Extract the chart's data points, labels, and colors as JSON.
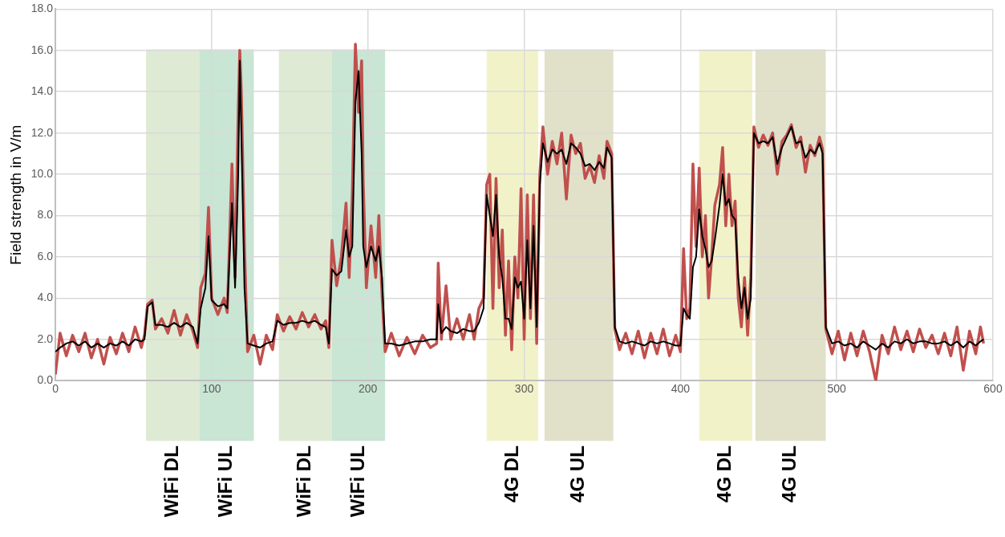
{
  "chart_data": {
    "type": "line",
    "ylabel": "Field strength in V/m",
    "x": [
      0,
      3,
      7,
      11,
      15,
      19,
      23,
      27,
      31,
      35,
      39,
      43,
      47,
      51,
      55,
      57,
      59,
      62,
      64,
      68,
      72,
      76,
      80,
      84,
      88,
      91,
      93,
      96,
      98,
      100,
      104,
      108,
      110,
      113,
      115,
      117,
      118,
      119,
      121,
      123,
      127,
      131,
      135,
      139,
      142,
      146,
      150,
      154,
      158,
      162,
      166,
      170,
      173,
      175,
      177,
      180,
      183,
      186,
      188,
      190,
      192,
      194,
      196,
      197,
      199,
      202,
      205,
      207,
      209,
      211,
      215,
      220,
      225,
      230,
      235,
      240,
      244,
      245,
      247,
      250,
      253,
      257,
      261,
      265,
      268,
      271,
      274,
      276,
      278,
      280,
      282,
      284,
      286,
      288,
      290,
      292,
      294,
      296,
      298,
      300,
      302,
      304,
      306,
      308,
      310,
      312,
      315,
      318,
      321,
      324,
      327,
      330,
      333,
      336,
      339,
      342,
      345,
      348,
      351,
      353,
      356,
      358,
      361,
      365,
      369,
      373,
      377,
      381,
      385,
      389,
      393,
      397,
      400,
      402,
      404,
      406,
      408,
      410,
      412,
      414,
      416,
      418,
      420,
      422,
      425,
      427,
      429,
      431,
      433,
      435,
      437,
      439,
      441,
      443,
      445,
      447,
      450,
      453,
      456,
      459,
      462,
      465,
      468,
      471,
      474,
      477,
      480,
      483,
      486,
      489,
      491,
      493,
      497,
      501,
      505,
      509,
      513,
      517,
      521,
      525,
      529,
      533,
      537,
      541,
      545,
      549,
      553,
      557,
      561,
      565,
      569,
      573,
      577,
      581,
      585,
      589,
      592,
      594
    ],
    "series": [
      {
        "color": "#c0504d",
        "values": [
          0.3,
          2.3,
          1.2,
          2.2,
          1.4,
          2.3,
          1.1,
          2.0,
          0.8,
          2.1,
          1.3,
          2.3,
          1.4,
          2.6,
          1.6,
          2.2,
          3.7,
          3.9,
          2.5,
          3.0,
          2.3,
          3.4,
          2.2,
          3.2,
          2.4,
          1.6,
          4.5,
          5.2,
          8.4,
          4.0,
          3.2,
          4.0,
          3.3,
          10.5,
          5.0,
          13.0,
          16.0,
          14.0,
          6.5,
          1.4,
          2.2,
          0.8,
          2.2,
          1.5,
          3.2,
          2.4,
          3.1,
          2.5,
          3.3,
          2.6,
          3.2,
          2.5,
          2.9,
          1.6,
          6.8,
          4.6,
          6.0,
          8.6,
          5.0,
          9.0,
          16.3,
          13.0,
          15.5,
          9.6,
          4.5,
          7.5,
          5.0,
          8.0,
          4.2,
          1.4,
          2.3,
          1.2,
          2.1,
          1.3,
          2.2,
          1.6,
          1.8,
          5.7,
          2.0,
          4.6,
          2.0,
          3.0,
          2.0,
          3.2,
          2.0,
          3.5,
          4.0,
          9.5,
          10.0,
          3.5,
          9.8,
          4.5,
          7.3,
          2.2,
          5.8,
          1.5,
          6.0,
          4.0,
          9.3,
          2.0,
          9.0,
          3.0,
          9.0,
          1.8,
          10.0,
          12.3,
          10.0,
          11.6,
          10.5,
          12.0,
          8.8,
          11.9,
          11.0,
          11.5,
          9.8,
          10.4,
          9.6,
          10.9,
          9.8,
          11.6,
          11.0,
          2.5,
          1.5,
          2.3,
          1.3,
          2.4,
          1.1,
          2.3,
          1.3,
          2.5,
          1.2,
          2.2,
          1.4,
          6.4,
          3.0,
          3.5,
          10.5,
          6.5,
          10.3,
          6.0,
          8.0,
          4.0,
          6.0,
          8.5,
          9.5,
          11.3,
          7.5,
          10.0,
          7.5,
          8.7,
          4.0,
          2.6,
          5.0,
          2.2,
          5.0,
          12.3,
          11.3,
          11.9,
          11.4,
          12.0,
          10.0,
          11.6,
          11.9,
          12.4,
          11.3,
          11.8,
          10.1,
          11.4,
          10.9,
          11.8,
          11.2,
          2.5,
          1.3,
          2.4,
          1.0,
          2.3,
          1.2,
          2.4,
          1.4,
          0.0,
          2.2,
          1.3,
          2.6,
          1.5,
          2.4,
          1.4,
          2.5,
          1.6,
          2.2,
          1.3,
          2.3,
          1.2,
          2.6,
          0.5,
          2.4,
          1.3,
          2.6,
          1.8
        ]
      },
      {
        "color": "#000000",
        "values": [
          1.4,
          1.6,
          1.8,
          1.9,
          1.7,
          1.9,
          1.6,
          1.8,
          1.6,
          1.8,
          1.7,
          1.9,
          1.7,
          2.0,
          1.9,
          2.0,
          3.6,
          3.8,
          2.7,
          2.7,
          2.6,
          2.8,
          2.6,
          2.8,
          2.6,
          1.8,
          3.5,
          4.5,
          7.0,
          3.9,
          3.6,
          3.7,
          3.5,
          8.6,
          4.5,
          10.0,
          15.5,
          12.0,
          4.5,
          1.8,
          1.7,
          1.6,
          1.8,
          1.9,
          2.9,
          2.7,
          2.8,
          2.8,
          2.9,
          2.8,
          2.9,
          2.7,
          2.6,
          1.8,
          5.4,
          5.1,
          5.3,
          7.3,
          6.0,
          6.5,
          13.5,
          15.0,
          11.0,
          6.5,
          5.5,
          6.5,
          5.8,
          6.5,
          5.0,
          1.8,
          1.8,
          1.7,
          1.8,
          1.9,
          1.9,
          2.0,
          2.0,
          3.7,
          2.3,
          2.6,
          2.4,
          2.3,
          2.5,
          2.4,
          2.4,
          2.8,
          3.5,
          9.0,
          8.0,
          7.0,
          9.0,
          6.0,
          5.0,
          3.0,
          3.0,
          2.5,
          5.0,
          4.5,
          4.8,
          3.0,
          6.8,
          3.5,
          7.5,
          2.6,
          9.5,
          11.5,
          10.6,
          11.2,
          11.0,
          11.2,
          10.5,
          11.5,
          11.3,
          11.0,
          10.4,
          10.5,
          10.2,
          10.6,
          10.3,
          11.3,
          10.8,
          2.6,
          1.9,
          1.8,
          1.9,
          1.8,
          1.7,
          1.9,
          1.8,
          1.9,
          1.8,
          1.7,
          1.7,
          3.5,
          3.2,
          3.0,
          5.5,
          6.0,
          8.3,
          7.0,
          6.4,
          5.5,
          5.8,
          6.8,
          8.5,
          10.0,
          8.5,
          8.8,
          8.0,
          7.8,
          5.0,
          3.5,
          4.5,
          3.0,
          4.0,
          12.0,
          11.5,
          11.6,
          11.5,
          11.8,
          10.5,
          11.3,
          11.8,
          12.3,
          11.5,
          11.6,
          10.8,
          11.2,
          11.0,
          11.5,
          11.0,
          2.6,
          1.8,
          1.9,
          1.7,
          1.8,
          1.6,
          1.9,
          1.7,
          1.5,
          1.8,
          1.6,
          1.9,
          1.8,
          2.0,
          1.8,
          1.9,
          1.9,
          1.8,
          1.8,
          1.9,
          1.7,
          1.9,
          1.6,
          1.9,
          1.7,
          1.9,
          2.0
        ]
      }
    ],
    "xlim": [
      0,
      600
    ],
    "xticks": [
      0,
      100,
      200,
      300,
      400,
      500,
      600
    ],
    "ylim": [
      0,
      18
    ],
    "yticks": [
      {
        "value": 0,
        "label": "0.0"
      },
      {
        "value": 2,
        "label": "2.0"
      },
      {
        "value": 4,
        "label": "4.0"
      },
      {
        "value": 6,
        "label": "6.0"
      },
      {
        "value": 8,
        "label": "8.0"
      },
      {
        "value": 10,
        "label": "10.0"
      },
      {
        "value": 12,
        "label": "12.0"
      },
      {
        "value": 14,
        "label": "14.0"
      },
      {
        "value": 16,
        "label": "16.0"
      },
      {
        "value": 18,
        "label": "18.0"
      }
    ],
    "bands": [
      {
        "axis": "x",
        "from": 58,
        "to": 92,
        "label": "WiFi DL",
        "color": "#d9e6cc"
      },
      {
        "axis": "x",
        "from": 92,
        "to": 127,
        "label": "WiFi UL",
        "color": "#c0e0cc"
      },
      {
        "axis": "x",
        "from": 143,
        "to": 177,
        "label": "WiFi DL",
        "color": "#d9e6cc"
      },
      {
        "axis": "x",
        "from": 177,
        "to": 211,
        "label": "WiFi UL",
        "color": "#c0e0cc"
      },
      {
        "axis": "x",
        "from": 276,
        "to": 309,
        "label": "4G DL",
        "color": "#f0f0c0"
      },
      {
        "axis": "x",
        "from": 313,
        "to": 357,
        "label": "4G UL",
        "color": "#dcdcc0"
      },
      {
        "axis": "x",
        "from": 412,
        "to": 446,
        "label": "4G DL",
        "color": "#f0f0c0"
      },
      {
        "axis": "x",
        "from": 448,
        "to": 493,
        "label": "4G UL",
        "color": "#dcdcc0"
      }
    ],
    "grid": true,
    "legend": false,
    "marker": "none",
    "line_style": "solid"
  }
}
